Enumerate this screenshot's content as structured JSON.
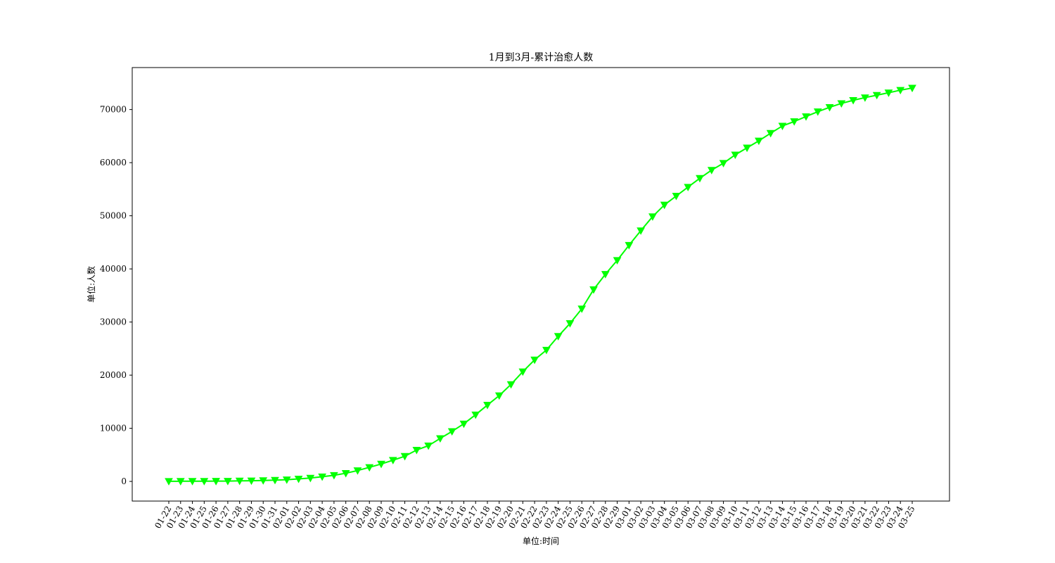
{
  "chart_data": {
    "type": "line",
    "title": "1月到3月-累计治愈人数",
    "xlabel": "单位:时间",
    "ylabel": "单位:人数",
    "categories": [
      "01-22",
      "01-23",
      "01-24",
      "01-25",
      "01-26",
      "01-27",
      "01-28",
      "01-29",
      "01-30",
      "01-31",
      "02-01",
      "02-02",
      "02-03",
      "02-04",
      "02-05",
      "02-06",
      "02-07",
      "02-08",
      "02-09",
      "02-10",
      "02-11",
      "02-12",
      "02-13",
      "02-14",
      "02-15",
      "02-16",
      "02-17",
      "02-18",
      "02-19",
      "02-20",
      "02-21",
      "02-22",
      "02-23",
      "02-24",
      "02-25",
      "02-26",
      "02-27",
      "02-28",
      "02-29",
      "03-01",
      "03-02",
      "03-03",
      "03-04",
      "03-05",
      "03-06",
      "03-07",
      "03-08",
      "03-09",
      "03-10",
      "03-11",
      "03-12",
      "03-13",
      "03-14",
      "03-15",
      "03-16",
      "03-17",
      "03-18",
      "03-19",
      "03-20",
      "03-21",
      "03-22",
      "03-23",
      "03-24",
      "03-25"
    ],
    "series": [
      {
        "values": [
          28,
          34,
          38,
          49,
          51,
          60,
          103,
          124,
          171,
          243,
          328,
          475,
          632,
          892,
          1153,
          1540,
          2050,
          2649,
          3281,
          3996,
          4740,
          5911,
          6723,
          8096,
          9419,
          10844,
          12552,
          14376,
          16155,
          18264,
          20659,
          22888,
          24734,
          27323,
          29745,
          32495,
          36117,
          39002,
          41625,
          44462,
          47204,
          49856,
          52045,
          53726,
          55404,
          57065,
          58600,
          59897,
          61475,
          62793,
          64111,
          65541,
          66911,
          67749,
          68679,
          69601,
          70420,
          71150,
          71740,
          72244,
          72703,
          73159,
          73650,
          74051
        ]
      }
    ],
    "ylim": [
      -3700,
      77900
    ],
    "yticks": [
      0,
      10000,
      20000,
      30000,
      40000,
      50000,
      60000,
      70000
    ],
    "grid": false,
    "line_color": "#00ff00",
    "marker": "triangle-down"
  }
}
